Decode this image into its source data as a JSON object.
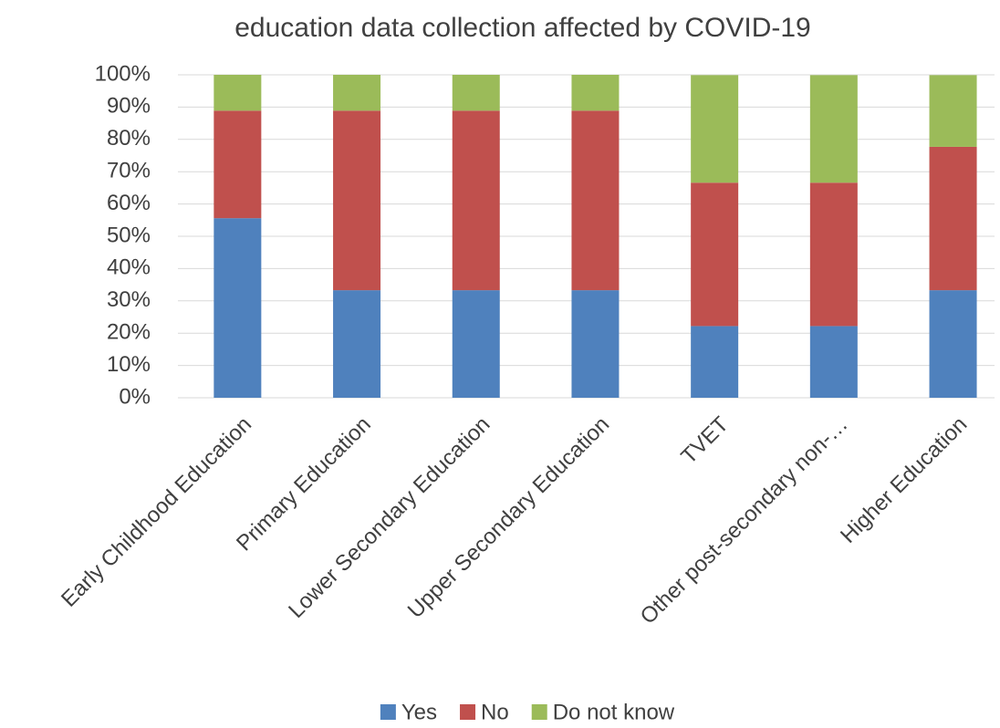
{
  "chart_data": {
    "type": "stacked_bar",
    "title": "education data collection affected by COVID-19",
    "categories": [
      "Early Childhood Education",
      "Primary Education",
      "Lower Secondary Education",
      "Upper Secondary Education",
      "TVET",
      "Other post-secondary non-…",
      "Higher Education"
    ],
    "series": [
      {
        "name": "Yes",
        "color": "#4f81bd",
        "values": [
          55.6,
          33.3,
          33.3,
          33.3,
          22.2,
          22.2,
          33.3
        ]
      },
      {
        "name": "No",
        "color": "#c0504d",
        "values": [
          33.3,
          55.6,
          55.6,
          55.6,
          44.4,
          44.4,
          44.4
        ]
      },
      {
        "name": "Do not know",
        "color": "#9bbb59",
        "values": [
          11.1,
          11.1,
          11.1,
          11.1,
          33.3,
          33.3,
          22.2
        ]
      }
    ],
    "ylim": [
      0,
      100
    ],
    "yticks": [
      {
        "value": 0,
        "label": "0%"
      },
      {
        "value": 10,
        "label": "10%"
      },
      {
        "value": 20,
        "label": "20%"
      },
      {
        "value": 30,
        "label": "30%"
      },
      {
        "value": 40,
        "label": "40%"
      },
      {
        "value": 50,
        "label": "50%"
      },
      {
        "value": 60,
        "label": "60%"
      },
      {
        "value": 70,
        "label": "70%"
      },
      {
        "value": 80,
        "label": "80%"
      },
      {
        "value": 90,
        "label": "90%"
      },
      {
        "value": 100,
        "label": "100%"
      }
    ],
    "grid": true,
    "legend": "bottom"
  }
}
